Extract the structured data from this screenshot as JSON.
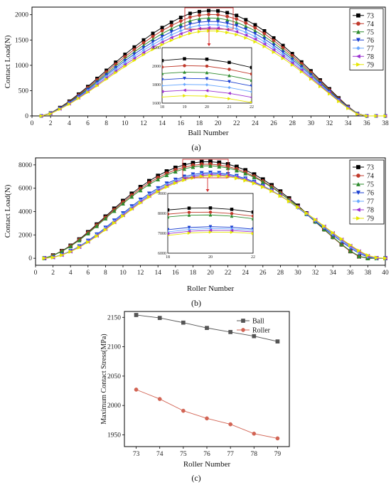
{
  "chart_data": [
    {
      "panel": "(a)",
      "type": "line",
      "xlabel": "Ball Number",
      "ylabel": "Contact Load(N)",
      "xlim": [
        0,
        38
      ],
      "ylim": [
        0,
        2150
      ],
      "xticks": [
        0,
        2,
        4,
        6,
        8,
        10,
        12,
        14,
        16,
        18,
        20,
        22,
        24,
        26,
        28,
        30,
        32,
        34,
        36,
        38
      ],
      "yticks": [
        0,
        500,
        1000,
        1500,
        2000
      ],
      "legend_position": "top-right",
      "x": [
        1,
        2,
        3,
        4,
        5,
        6,
        7,
        8,
        9,
        10,
        11,
        12,
        13,
        14,
        15,
        16,
        17,
        18,
        19,
        20,
        21,
        22,
        23,
        24,
        25,
        26,
        27,
        28,
        29,
        30,
        31,
        32,
        33,
        34,
        35,
        36,
        37,
        38
      ],
      "series": [
        {
          "name": "73",
          "color": "#000000",
          "marker": "square",
          "values": [
            0,
            55,
            165,
            290,
            430,
            580,
            740,
            900,
            1060,
            1215,
            1360,
            1500,
            1630,
            1745,
            1850,
            1945,
            2025,
            2060,
            2080,
            2075,
            2040,
            1985,
            1900,
            1800,
            1680,
            1540,
            1390,
            1230,
            1065,
            890,
            710,
            535,
            355,
            185,
            45,
            0,
            0,
            0
          ]
        },
        {
          "name": "74",
          "color": "#c0392b",
          "marker": "circle",
          "values": [
            0,
            52,
            158,
            278,
            413,
            558,
            712,
            868,
            1022,
            1170,
            1310,
            1445,
            1570,
            1685,
            1785,
            1875,
            1950,
            1990,
            2005,
            2000,
            1965,
            1915,
            1835,
            1740,
            1625,
            1490,
            1345,
            1190,
            1030,
            860,
            685,
            515,
            340,
            178,
            43,
            0,
            0,
            0
          ]
        },
        {
          "name": "75",
          "color": "#2e8b2e",
          "marker": "triangle-up",
          "values": [
            0,
            50,
            152,
            268,
            398,
            538,
            686,
            836,
            984,
            1128,
            1264,
            1394,
            1515,
            1625,
            1722,
            1808,
            1880,
            1920,
            1935,
            1930,
            1898,
            1848,
            1772,
            1682,
            1572,
            1442,
            1302,
            1152,
            997,
            832,
            663,
            498,
            328,
            171,
            41,
            0,
            0,
            0
          ]
        },
        {
          "name": "76",
          "color": "#1a3fd1",
          "marker": "triangle-down",
          "values": [
            0,
            48,
            147,
            258,
            384,
            519,
            662,
            807,
            950,
            1089,
            1220,
            1346,
            1462,
            1568,
            1662,
            1745,
            1815,
            1853,
            1868,
            1863,
            1832,
            1785,
            1712,
            1625,
            1520,
            1395,
            1260,
            1115,
            965,
            806,
            642,
            482,
            318,
            165,
            40,
            0,
            0,
            0
          ]
        },
        {
          "name": "77",
          "color": "#6aa9ff",
          "marker": "diamond",
          "values": [
            0,
            46,
            142,
            248,
            370,
            500,
            638,
            778,
            916,
            1050,
            1177,
            1298,
            1410,
            1512,
            1603,
            1683,
            1750,
            1788,
            1802,
            1798,
            1768,
            1723,
            1653,
            1570,
            1468,
            1348,
            1218,
            1078,
            933,
            779,
            621,
            466,
            307,
            160,
            38,
            0,
            0,
            0
          ]
        },
        {
          "name": "78",
          "color": "#9b30d0",
          "marker": "triangle-left",
          "values": [
            0,
            44,
            137,
            239,
            357,
            482,
            615,
            750,
            883,
            1013,
            1135,
            1252,
            1360,
            1458,
            1546,
            1623,
            1688,
            1725,
            1739,
            1735,
            1706,
            1663,
            1596,
            1516,
            1418,
            1302,
            1177,
            1042,
            902,
            753,
            600,
            451,
            297,
            154,
            37,
            0,
            0,
            0
          ]
        },
        {
          "name": "79",
          "color": "#e6e600",
          "marker": "triangle-right",
          "values": [
            0,
            42,
            132,
            231,
            345,
            466,
            594,
            724,
            853,
            978,
            1096,
            1209,
            1313,
            1408,
            1493,
            1567,
            1630,
            1666,
            1680,
            1676,
            1648,
            1606,
            1542,
            1465,
            1371,
            1259,
            1138,
            1008,
            873,
            729,
            581,
            436,
            287,
            149,
            36,
            0,
            0,
            0
          ]
        }
      ],
      "inset": {
        "xlim": [
          18,
          22
        ],
        "ylim": [
          1600,
          2200
        ],
        "xticks": [
          18,
          19,
          20,
          21,
          22
        ],
        "yticks": [
          1600,
          1800,
          2000,
          2200
        ]
      }
    },
    {
      "panel": "(b)",
      "type": "line",
      "xlabel": "Roller Number",
      "ylabel": "Contact Load(N)",
      "xlim": [
        0,
        40
      ],
      "ylim": [
        -600,
        8600
      ],
      "xticks": [
        0,
        2,
        4,
        6,
        8,
        10,
        12,
        14,
        16,
        18,
        20,
        22,
        24,
        26,
        28,
        30,
        32,
        34,
        36,
        38,
        40
      ],
      "yticks": [
        0,
        2000,
        4000,
        6000,
        8000
      ],
      "legend_position": "top-right",
      "x": [
        1,
        2,
        3,
        4,
        5,
        6,
        7,
        8,
        9,
        10,
        11,
        12,
        13,
        14,
        15,
        16,
        17,
        18,
        19,
        20,
        21,
        22,
        23,
        24,
        25,
        26,
        27,
        28,
        29,
        30,
        31,
        32,
        33,
        34,
        35,
        36,
        37,
        38,
        39,
        40
      ],
      "series": [
        {
          "name": "73",
          "color": "#000000",
          "marker": "square",
          "values": [
            0,
            250,
            620,
            1080,
            1620,
            2240,
            2900,
            3580,
            4260,
            4920,
            5540,
            6110,
            6620,
            7070,
            7450,
            7760,
            8000,
            8170,
            8260,
            8270,
            8200,
            8060,
            7840,
            7550,
            7190,
            6760,
            6270,
            5730,
            5140,
            4510,
            3850,
            3170,
            2490,
            1820,
            1180,
            600,
            150,
            0,
            0,
            0
          ]
        },
        {
          "name": "74",
          "color": "#c0392b",
          "marker": "circle",
          "values": [
            0,
            240,
            600,
            1050,
            1580,
            2180,
            2830,
            3490,
            4150,
            4800,
            5400,
            5960,
            6460,
            6900,
            7270,
            7570,
            7800,
            7960,
            8050,
            8060,
            7990,
            7860,
            7650,
            7370,
            7020,
            6600,
            6130,
            5600,
            5030,
            4420,
            3780,
            3120,
            2450,
            1790,
            1160,
            590,
            150,
            0,
            0,
            0
          ]
        },
        {
          "name": "75",
          "color": "#2e8b2e",
          "marker": "triangle-up",
          "values": [
            0,
            230,
            585,
            1020,
            1540,
            2130,
            2760,
            3410,
            4060,
            4690,
            5280,
            5830,
            6320,
            6760,
            7130,
            7430,
            7660,
            7820,
            7910,
            7920,
            7860,
            7730,
            7530,
            7270,
            6940,
            6540,
            6080,
            5570,
            5010,
            4420,
            3790,
            3140,
            2480,
            1830,
            1200,
            630,
            180,
            0,
            0,
            0
          ]
        },
        {
          "name": "76",
          "color": "#1a3fd1",
          "marker": "triangle-down",
          "values": [
            0,
            80,
            300,
            620,
            1020,
            1500,
            2040,
            2620,
            3230,
            3850,
            4450,
            5020,
            5540,
            6000,
            6400,
            6730,
            6990,
            7180,
            7290,
            7330,
            7300,
            7210,
            7050,
            6830,
            6550,
            6210,
            5810,
            5360,
            4860,
            4320,
            3760,
            3170,
            2580,
            1990,
            1420,
            890,
            420,
            100,
            0,
            0
          ]
        },
        {
          "name": "77",
          "color": "#6aa9ff",
          "marker": "diamond",
          "values": [
            0,
            75,
            290,
            600,
            990,
            1460,
            1990,
            2560,
            3160,
            3770,
            4360,
            4920,
            5430,
            5890,
            6290,
            6620,
            6880,
            7070,
            7190,
            7240,
            7220,
            7140,
            6990,
            6780,
            6510,
            6180,
            5800,
            5360,
            4880,
            4360,
            3810,
            3240,
            2660,
            2080,
            1520,
            990,
            510,
            150,
            0,
            0
          ]
        },
        {
          "name": "78",
          "color": "#9b30d0",
          "marker": "triangle-left",
          "values": [
            0,
            70,
            280,
            580,
            960,
            1420,
            1940,
            2500,
            3090,
            3690,
            4270,
            4830,
            5340,
            5800,
            6200,
            6530,
            6790,
            6980,
            7100,
            7150,
            7140,
            7070,
            6930,
            6730,
            6470,
            6150,
            5780,
            5360,
            4890,
            4380,
            3850,
            3290,
            2720,
            2150,
            1600,
            1070,
            590,
            200,
            30,
            0
          ]
        },
        {
          "name": "79",
          "color": "#e6e600",
          "marker": "triangle-right",
          "values": [
            0,
            65,
            270,
            560,
            930,
            1380,
            1890,
            2440,
            3020,
            3610,
            4190,
            4740,
            5250,
            5710,
            6110,
            6440,
            6700,
            6890,
            7010,
            7060,
            7050,
            6990,
            6860,
            6670,
            6420,
            6110,
            5750,
            5340,
            4880,
            4380,
            3860,
            3310,
            2750,
            2190,
            1650,
            1130,
            650,
            250,
            50,
            0
          ]
        }
      ],
      "inset": {
        "xlim": [
          18,
          22
        ],
        "ylim": [
          6000,
          9000
        ],
        "xticks": [
          18,
          20,
          22
        ],
        "yticks": [
          6000,
          7000,
          8000,
          9000
        ]
      }
    },
    {
      "panel": "(c)",
      "type": "line",
      "xlabel": "Roller Number",
      "ylabel": "Maximum Contact Stress(MPa)",
      "xlim": [
        72.5,
        79.5
      ],
      "ylim": [
        1930,
        2160
      ],
      "xticks": [
        73,
        74,
        75,
        76,
        77,
        78,
        79
      ],
      "yticks": [
        1950,
        2000,
        2050,
        2100,
        2150
      ],
      "legend_position": "top-right",
      "categories": [
        73,
        74,
        75,
        76,
        77,
        78,
        79
      ],
      "series": [
        {
          "name": "Ball",
          "color": "#555555",
          "marker": "square",
          "values": [
            2154,
            2149,
            2141,
            2132,
            2125,
            2118,
            2109
          ]
        },
        {
          "name": "Roller",
          "color": "#d26454",
          "marker": "circle",
          "values": [
            2027,
            2011,
            1991,
            1978,
            1968,
            1952,
            1944
          ]
        }
      ]
    }
  ]
}
